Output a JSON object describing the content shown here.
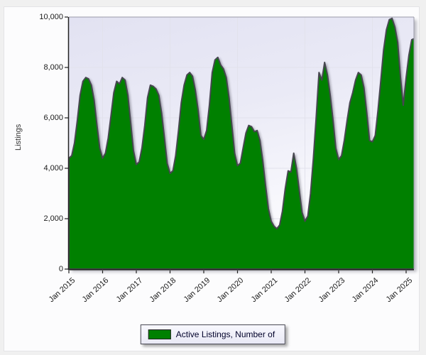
{
  "chart_data": {
    "type": "area",
    "title": "",
    "ylabel": "Listings",
    "xlabel": "",
    "ylim": [
      0,
      10000
    ],
    "x_range": [
      "Jan 2015",
      "Apr 2025"
    ],
    "frequency": "monthly",
    "grid": {
      "horizontal_values": [
        2000,
        4000,
        6000,
        8000,
        10000
      ],
      "vertical_year_indices": [
        1,
        3,
        5,
        7,
        9
      ],
      "gridline_color": "#e2e2ec"
    },
    "y_tick_labels": [
      "0",
      "2,000",
      "4,000",
      "6,000",
      "8,000",
      "10,000"
    ],
    "y_tick_values": [
      0,
      2000,
      4000,
      6000,
      8000,
      10000
    ],
    "x_tick_labels": [
      "Jan 2015",
      "Jan 2016",
      "Jan 2017",
      "Jan 2018",
      "Jan 2019",
      "Jan 2020",
      "Jan 2021",
      "Jan 2022",
      "Jan 2023",
      "Jan 2024",
      "Jan 2025"
    ],
    "legend": [
      {
        "label": "Active Listings, Number of",
        "color": "#008000"
      }
    ],
    "series": [
      {
        "name": "Active Listings, Number of",
        "fill_color": "#008000",
        "outline_color": "#474750",
        "values": [
          4400,
          4500,
          5000,
          5900,
          6900,
          7450,
          7600,
          7550,
          7300,
          6700,
          5700,
          4800,
          4400,
          4600,
          5200,
          6100,
          7000,
          7450,
          7350,
          7600,
          7500,
          6900,
          5800,
          4700,
          4150,
          4250,
          4800,
          5700,
          6800,
          7300,
          7250,
          7150,
          6900,
          6200,
          5200,
          4200,
          3800,
          3900,
          4500,
          5500,
          6600,
          7300,
          7700,
          7800,
          7650,
          7100,
          6300,
          5300,
          5150,
          5500,
          6500,
          7800,
          8300,
          8400,
          8100,
          7950,
          7600,
          6800,
          5700,
          4600,
          4100,
          4200,
          4800,
          5400,
          5700,
          5650,
          5450,
          5500,
          5100,
          4300,
          3300,
          2400,
          1900,
          1700,
          1600,
          1750,
          2300,
          3200,
          3900,
          3850,
          4600,
          4000,
          3100,
          2250,
          1900,
          2100,
          3000,
          4400,
          6000,
          7800,
          7500,
          8200,
          7700,
          6900,
          5900,
          4800,
          4350,
          4500,
          5100,
          5900,
          6600,
          7000,
          7500,
          7800,
          7700,
          7200,
          6200,
          5100,
          5050,
          5300,
          6300,
          7500,
          8700,
          9500,
          9900,
          9950,
          9600,
          9000,
          7600,
          6500,
          7600,
          8500,
          9100,
          9150
        ]
      }
    ],
    "plot_background": {
      "top_color": "#e2e2f2",
      "bottom_color": "#fdfdff"
    }
  },
  "colors": {
    "page_background": "#f0f0f0",
    "panel_background": "#fcfcfd",
    "axis_color": "#222222",
    "tick_text_color": "#1a1a1a",
    "legend_text_color": "#00002a"
  }
}
